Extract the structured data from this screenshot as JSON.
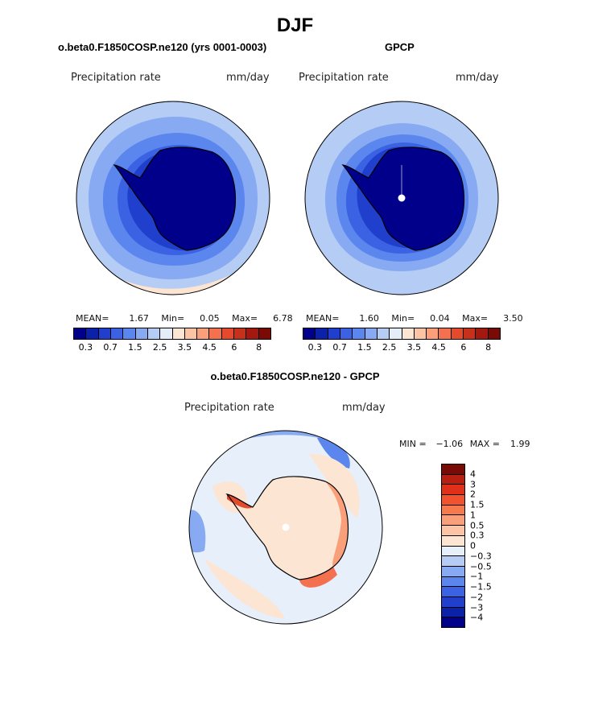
{
  "title": "DJF",
  "panels": [
    {
      "id": "model",
      "title": "o.beta0.F1850COSP.ne120 (yrs 0001-0003)",
      "variable": "Precipitation rate",
      "units": "mm/day",
      "stats": {
        "mean_label": "MEAN=",
        "mean": "1.67",
        "min_label": "Min=",
        "min": "0.05",
        "max_label": "Max=",
        "max": "6.78"
      }
    },
    {
      "id": "obs",
      "title": "GPCP",
      "variable": "Precipitation rate",
      "units": "mm/day",
      "stats": {
        "mean_label": "MEAN=",
        "mean": "1.60",
        "min_label": "Min=",
        "min": "0.04",
        "max_label": "Max=",
        "max": "3.50"
      }
    },
    {
      "id": "diff",
      "title": "o.beta0.F1850COSP.ne120 - GPCP",
      "variable": "Precipitation rate",
      "units": "mm/day",
      "stats": {
        "min_label": "MIN =",
        "min": "−1.06",
        "max_label": "MAX =",
        "max": "1.99"
      }
    }
  ],
  "colorbar_abs": {
    "colors": [
      "#00008b",
      "#0a21a8",
      "#1f3fcc",
      "#3a62e3",
      "#5a86ee",
      "#87aaf2",
      "#b5cdf5",
      "#e4eef9",
      "#fde5d4",
      "#fcc4a5",
      "#f9a07a",
      "#f3714f",
      "#e54a2c",
      "#c7301a",
      "#a3180f",
      "#7a0a05"
    ],
    "tick_labels": [
      "0.3",
      "0.7",
      "1.5",
      "2.5",
      "3.5",
      "4.5",
      "6",
      "8"
    ]
  },
  "colorbar_diff": {
    "colors": [
      "#7a0a05",
      "#b81f10",
      "#e0301a",
      "#f2522d",
      "#f77a4e",
      "#f9a07a",
      "#fcc4a5",
      "#fde5d4",
      "#e6effa",
      "#b5cdf5",
      "#87aaf2",
      "#5a86ee",
      "#3a62e3",
      "#1f3fcc",
      "#0a21a8",
      "#00008b"
    ],
    "tick_labels": [
      "4",
      "3",
      "2",
      "1.5",
      "1",
      "0.5",
      "0.3",
      "0",
      "−0.3",
      "−0.5",
      "−1",
      "−1.5",
      "−2",
      "−3",
      "−4"
    ]
  },
  "chart_data": [
    {
      "type": "heatmap",
      "title": "o.beta0.F1850COSP.ne120 (yrs 0001-0003)",
      "subtitle": "DJF",
      "projection": "south polar stereographic",
      "variable": "Precipitation rate",
      "units": "mm/day",
      "mean": 1.67,
      "min": 0.05,
      "max": 6.78,
      "contour_levels": [
        0.2,
        0.3,
        0.5,
        0.7,
        1,
        1.5,
        2,
        2.5,
        3,
        3.5,
        4,
        4.5,
        5,
        6,
        7,
        8
      ]
    },
    {
      "type": "heatmap",
      "title": "GPCP",
      "subtitle": "DJF",
      "projection": "south polar stereographic",
      "variable": "Precipitation rate",
      "units": "mm/day",
      "mean": 1.6,
      "min": 0.04,
      "max": 3.5,
      "contour_levels": [
        0.2,
        0.3,
        0.5,
        0.7,
        1,
        1.5,
        2,
        2.5,
        3,
        3.5,
        4,
        4.5,
        5,
        6,
        7,
        8
      ]
    },
    {
      "type": "heatmap",
      "title": "o.beta0.F1850COSP.ne120 - GPCP",
      "subtitle": "DJF",
      "projection": "south polar stereographic",
      "variable": "Precipitation rate",
      "units": "mm/day",
      "min": -1.06,
      "max": 1.99,
      "contour_levels": [
        -4,
        -3,
        -2,
        -1.5,
        -1,
        -0.5,
        -0.3,
        0,
        0.3,
        0.5,
        1,
        1.5,
        2,
        3,
        4
      ]
    }
  ]
}
